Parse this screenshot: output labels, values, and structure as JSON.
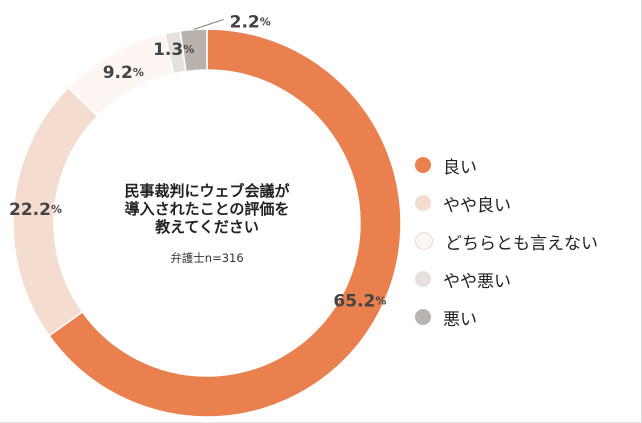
{
  "chart_data": {
    "type": "pie",
    "style": "donut",
    "title_lines": [
      "民事裁判にウェブ会議が",
      "導入されたことの評価を",
      "教えてください"
    ],
    "subtitle": "弁護士n=316",
    "slices": [
      {
        "label": "良い",
        "value": 65.2,
        "display": "65.2",
        "color": "#e9804e"
      },
      {
        "label": "やや良い",
        "value": 22.2,
        "display": "22.2",
        "color": "#f4dccf"
      },
      {
        "label": "どちらとも言えない",
        "value": 9.2,
        "display": "9.2",
        "color": "#fdf6f2"
      },
      {
        "label": "やや悪い",
        "value": 1.3,
        "display": "1.3",
        "color": "#e6e0de"
      },
      {
        "label": "悪い",
        "value": 2.2,
        "display": "2.2",
        "color": "#b9b3b0"
      }
    ],
    "unit": "%",
    "legend_position": "right"
  }
}
